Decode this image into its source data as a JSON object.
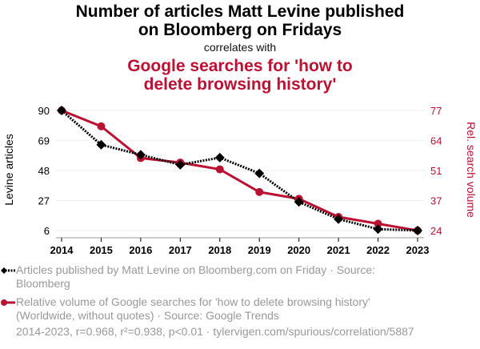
{
  "header": {
    "title": "Number of articles Matt Levine published on Bloomberg on Fridays",
    "title_line1": "Number of articles Matt Levine published",
    "title_line2": "on Bloomberg on Fridays",
    "connector": "correlates with",
    "subtitle_line1": "Google searches for 'how to",
    "subtitle_line2": "delete browsing history'"
  },
  "colors": {
    "series1": "#000000",
    "series2": "#bb1133",
    "grid": "#eeeeee",
    "legend_text": "#999999"
  },
  "legend": {
    "series1": "Articles published by Matt Levine on Bloomberg.com on Friday · Source: Bloomberg",
    "series2": "Relative volume of Google searches for 'how to delete browsing history' (Worldwide, without quotes) · Source: Google Trends"
  },
  "footer": {
    "stats": "2014-2023, r=0.968, r²=0.938, p<0.01 · tylervigen.com/spurious/correlation/5887"
  },
  "chart_data": {
    "type": "line",
    "title": "Number of articles Matt Levine published on Bloomberg on Fridays correlates with Google searches for 'how to delete browsing history'",
    "x": [
      "2014",
      "2015",
      "2016",
      "2017",
      "2018",
      "2019",
      "2020",
      "2021",
      "2022",
      "2023"
    ],
    "ylabel": "Levine articles",
    "ylabel_right": "Rel. search volume",
    "ylim": [
      6,
      90
    ],
    "ylim_right": [
      24,
      77
    ],
    "yticks": [
      "90",
      "69",
      "48",
      "27",
      "6"
    ],
    "yticks_right": [
      "77",
      "64",
      "51",
      "37",
      "24"
    ],
    "grid": true,
    "series": [
      {
        "name": "Articles published by Matt Levine on Bloomberg.com on Friday",
        "axis": "left",
        "style": "dotted",
        "marker": "diamond",
        "values": [
          90,
          66,
          59,
          52,
          57,
          46,
          26,
          14,
          7,
          6
        ]
      },
      {
        "name": "Relative volume of Google searches for 'how to delete browsing history'",
        "axis": "right",
        "style": "solid",
        "marker": "circle",
        "values": [
          77,
          70,
          56,
          54,
          51,
          41,
          38,
          30,
          27,
          24
        ]
      }
    ]
  }
}
